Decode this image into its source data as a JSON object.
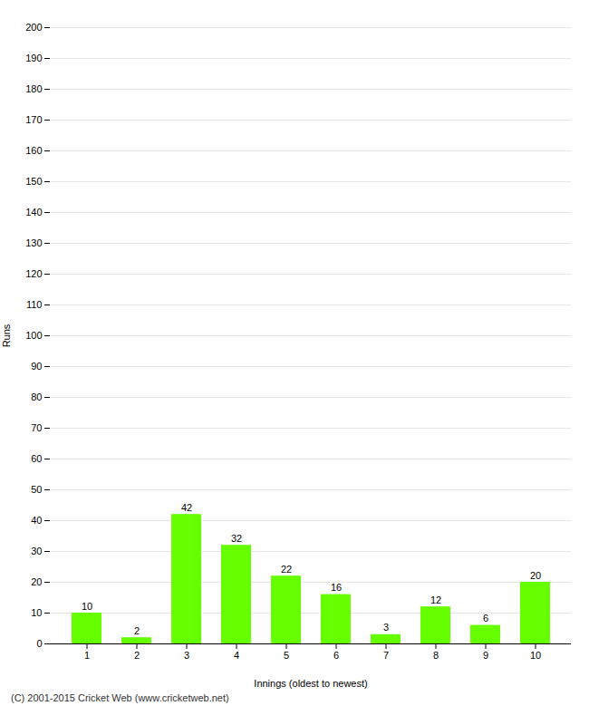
{
  "chart_data": {
    "type": "bar",
    "categories": [
      "1",
      "2",
      "3",
      "4",
      "5",
      "6",
      "7",
      "8",
      "9",
      "10"
    ],
    "values": [
      10,
      2,
      42,
      32,
      22,
      16,
      3,
      12,
      6,
      20
    ],
    "color": "#66ff00",
    "xlabel": "Innings (oldest to newest)",
    "ylabel": "Runs",
    "ylim": [
      0,
      200
    ],
    "yticks": [
      0,
      10,
      20,
      30,
      40,
      50,
      60,
      70,
      80,
      90,
      100,
      110,
      120,
      130,
      140,
      150,
      160,
      170,
      180,
      190,
      200
    ],
    "grid": true,
    "data_labels": true,
    "footer": "(C) 2001-2015 Cricket Web (www.cricketweb.net)"
  }
}
